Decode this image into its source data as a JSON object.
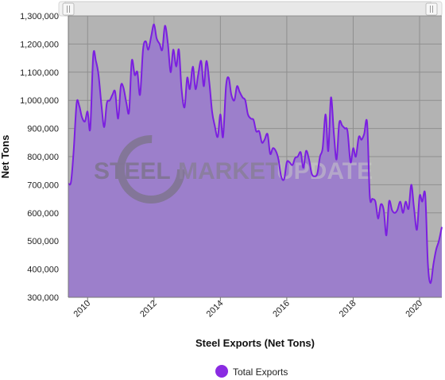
{
  "navigator": {
    "left_handle_icon": "grip-lines-icon",
    "right_handle_icon": "grip-lines-icon"
  },
  "watermark": {
    "text_a": "STEEL",
    "text_b": "MARKET",
    "text_c": "UPDATE"
  },
  "legend": {
    "label": "Total Exports",
    "color": "#8a2be2"
  },
  "colors": {
    "plot_background": "#b3b3b3",
    "area_fill": "#9c7fcb",
    "line": "#7b1fe0"
  },
  "chart_data": {
    "type": "area",
    "title": "",
    "xlabel": "Steel Exports (Net Tons)",
    "ylabel": "Net Tons",
    "ylim": [
      300000,
      1300000
    ],
    "xlim": [
      2009.42,
      2020.67
    ],
    "grid": true,
    "legend_position": "bottom",
    "x_ticks": [
      "2010",
      "2012",
      "2014",
      "2016",
      "2018",
      "2020"
    ],
    "y_ticks": [
      "300,000",
      "400,000",
      "500,000",
      "600,000",
      "700,000",
      "800,000",
      "900,000",
      "1,000,000",
      "1,100,000",
      "1,200,000",
      "1,300,000"
    ],
    "series": [
      {
        "name": "Total Exports",
        "x": [
          2009.42,
          2009.5,
          2009.58,
          2009.67,
          2009.75,
          2009.83,
          2009.92,
          2010.0,
          2010.08,
          2010.17,
          2010.25,
          2010.33,
          2010.42,
          2010.5,
          2010.58,
          2010.67,
          2010.75,
          2010.83,
          2010.92,
          2011.0,
          2011.08,
          2011.17,
          2011.25,
          2011.33,
          2011.42,
          2011.5,
          2011.58,
          2011.67,
          2011.75,
          2011.83,
          2011.92,
          2012.0,
          2012.08,
          2012.17,
          2012.25,
          2012.33,
          2012.42,
          2012.5,
          2012.58,
          2012.67,
          2012.75,
          2012.83,
          2012.92,
          2013.0,
          2013.08,
          2013.17,
          2013.25,
          2013.33,
          2013.42,
          2013.5,
          2013.58,
          2013.67,
          2013.75,
          2013.83,
          2013.92,
          2014.0,
          2014.08,
          2014.17,
          2014.25,
          2014.33,
          2014.42,
          2014.5,
          2014.58,
          2014.67,
          2014.75,
          2014.83,
          2014.92,
          2015.0,
          2015.08,
          2015.17,
          2015.25,
          2015.33,
          2015.42,
          2015.5,
          2015.58,
          2015.67,
          2015.75,
          2015.83,
          2015.92,
          2016.0,
          2016.08,
          2016.17,
          2016.25,
          2016.33,
          2016.42,
          2016.5,
          2016.58,
          2016.67,
          2016.75,
          2016.83,
          2016.92,
          2017.0,
          2017.08,
          2017.17,
          2017.25,
          2017.33,
          2017.42,
          2017.5,
          2017.58,
          2017.67,
          2017.75,
          2017.83,
          2017.92,
          2018.0,
          2018.08,
          2018.17,
          2018.25,
          2018.33,
          2018.42,
          2018.5,
          2018.58,
          2018.67,
          2018.75,
          2018.83,
          2018.92,
          2019.0,
          2019.08,
          2019.17,
          2019.25,
          2019.33,
          2019.42,
          2019.5,
          2019.58,
          2019.67,
          2019.75,
          2019.83,
          2019.92,
          2020.0,
          2020.08,
          2020.17,
          2020.25,
          2020.33,
          2020.42,
          2020.5,
          2020.58,
          2020.67
        ],
        "values": [
          705000,
          710000,
          820000,
          990000,
          980000,
          940000,
          925000,
          960000,
          900000,
          1160000,
          1140000,
          1090000,
          980000,
          905000,
          990000,
          1000000,
          1020000,
          1030000,
          935000,
          1050000,
          1045000,
          990000,
          960000,
          1140000,
          1090000,
          1100000,
          1020000,
          1180000,
          1210000,
          1180000,
          1230000,
          1270000,
          1220000,
          1200000,
          1180000,
          1265000,
          1200000,
          1100000,
          1180000,
          1120000,
          1180000,
          1040000,
          975000,
          1080000,
          1040000,
          1120000,
          1040000,
          1090000,
          1140000,
          1050000,
          1140000,
          1060000,
          960000,
          910000,
          870000,
          950000,
          870000,
          1050000,
          1080000,
          1020000,
          1000000,
          1050000,
          1030000,
          1010000,
          1000000,
          950000,
          935000,
          930000,
          890000,
          890000,
          850000,
          860000,
          880000,
          810000,
          830000,
          820000,
          790000,
          730000,
          720000,
          780000,
          780000,
          770000,
          795000,
          800000,
          815000,
          760000,
          820000,
          790000,
          740000,
          730000,
          740000,
          800000,
          830000,
          950000,
          820000,
          1010000,
          880000,
          790000,
          920000,
          910000,
          900000,
          890000,
          780000,
          830000,
          800000,
          870000,
          860000,
          880000,
          920000,
          660000,
          650000,
          640000,
          580000,
          630000,
          610000,
          520000,
          640000,
          610000,
          600000,
          610000,
          640000,
          600000,
          640000,
          615000,
          700000,
          620000,
          540000,
          660000,
          640000,
          665000,
          420000,
          350000,
          420000,
          470000,
          500000,
          550000
        ]
      }
    ]
  }
}
